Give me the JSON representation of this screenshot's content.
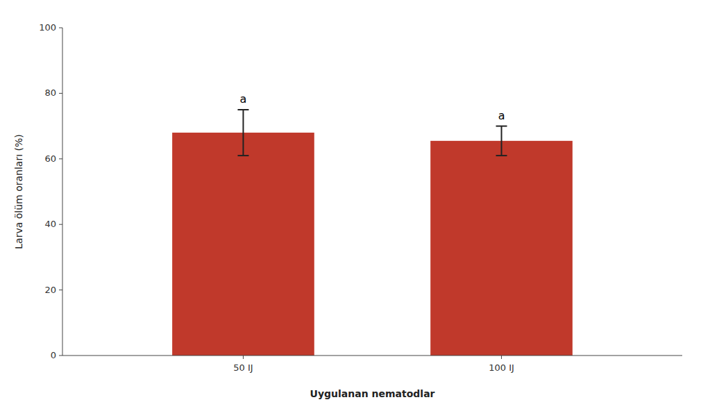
{
  "chart_data": {
    "type": "bar",
    "categories": [
      "50 IJ",
      "100 IJ"
    ],
    "values": [
      68.0,
      65.5
    ],
    "errors": [
      7.0,
      4.5
    ],
    "color": "#c0392b",
    "xlabel": "Uygulanan nematodlar",
    "ylabel": "Larva ölüm oranları (%)",
    "annotations": [
      "a",
      "a"
    ],
    "ylim": [
      0,
      100
    ],
    "yticks": [
      0,
      20,
      40,
      60,
      80,
      100
    ],
    "grid": false
  }
}
